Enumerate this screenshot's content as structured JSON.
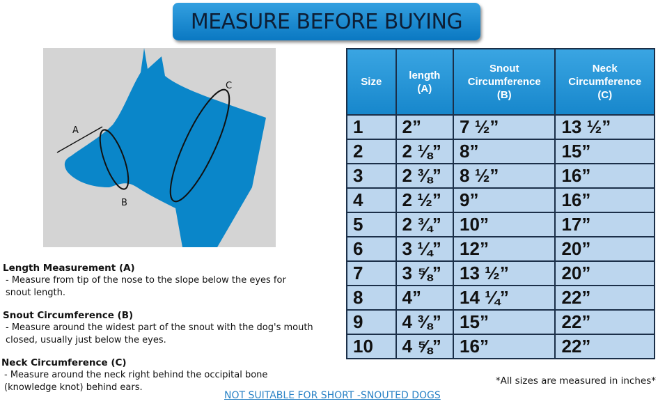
{
  "title": "MEASURE BEFORE BUYING",
  "illustration": {
    "labels": [
      "A",
      "B",
      "C"
    ],
    "dog_color": "#0a86c9",
    "bg": "#d4d4d4"
  },
  "instructions": [
    {
      "heading": "Length Measurement (A)",
      "text": "- Measure from tip of the nose to the slope below the eyes for snout length."
    },
    {
      "heading": "Snout Circumference (B)",
      "text": "- Measure around the widest part of the snout with the dog's mouth closed, usually just below the eyes."
    },
    {
      "heading": "Neck Circumference (C)",
      "text": "- Measure around the neck right behind the occipital bone (knowledge knot) behind ears."
    }
  ],
  "table": {
    "headers": [
      [
        "Size"
      ],
      [
        "length",
        "(A)"
      ],
      [
        "Snout",
        "Circumference",
        "(B)"
      ],
      [
        "Neck",
        "Circumference",
        "(C)"
      ]
    ],
    "rows": [
      [
        "1",
        "2”",
        "7 ½”",
        "13 ½”"
      ],
      [
        "2",
        "2 ⅛”",
        "8”",
        "15”"
      ],
      [
        "3",
        "2 ⅜”",
        "8 ½”",
        "16”"
      ],
      [
        "4",
        "2 ½”",
        "9”",
        "16”"
      ],
      [
        "5",
        "2 ¾”",
        "10”",
        "17”"
      ],
      [
        "6",
        "3 ¼”",
        "12”",
        "20”"
      ],
      [
        "7",
        "3 ⅝”",
        "13 ½”",
        "20”"
      ],
      [
        "8",
        "4”",
        "14 ¼”",
        "22”"
      ],
      [
        "9",
        "4 ⅜”",
        "15”",
        "22”"
      ],
      [
        "10",
        "4 ⅝”",
        "16”",
        "22”"
      ]
    ]
  },
  "note": "*All sizes are measured in inches*",
  "warning": "NOT SUITABLE FOR SHORT -SNOUTED DOGS"
}
